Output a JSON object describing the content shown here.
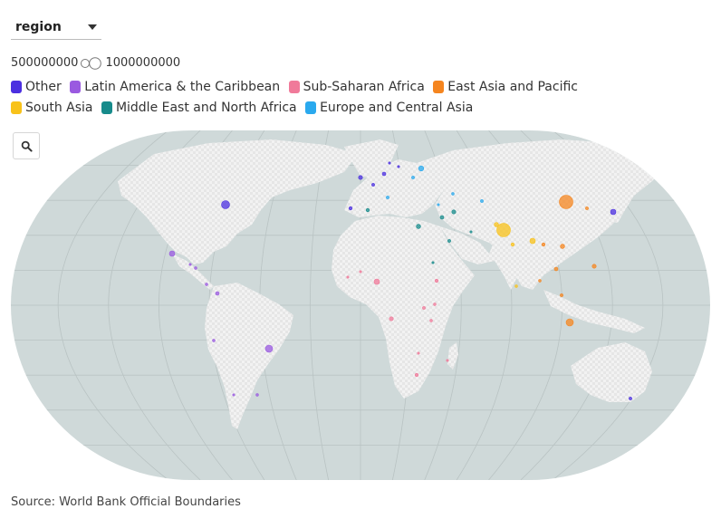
{
  "controls": {
    "region_value": "region",
    "size_legend_min": "500000000",
    "size_legend_max": "1000000000"
  },
  "legend": [
    {
      "label": "Other",
      "color": "#4b2fe0"
    },
    {
      "label": "Latin America & the Caribbean",
      "color": "#9a5ae0"
    },
    {
      "label": "Sub-Saharan Africa",
      "color": "#f07a9a"
    },
    {
      "label": "East Asia and Pacific",
      "color": "#f5851f"
    },
    {
      "label": "South Asia",
      "color": "#f8c21a"
    },
    {
      "label": "Middle East and North Africa",
      "color": "#178b8b"
    },
    {
      "label": "Europe and Central Asia",
      "color": "#2aa9ee"
    }
  ],
  "map": {
    "ocean_color": "#cfd9d9",
    "land_color": "#f0f0f0",
    "graticule_color": "#b9c3c3",
    "zoom_icon": "search-icon"
  },
  "source": "Source: World Bank Official Boundaries"
}
